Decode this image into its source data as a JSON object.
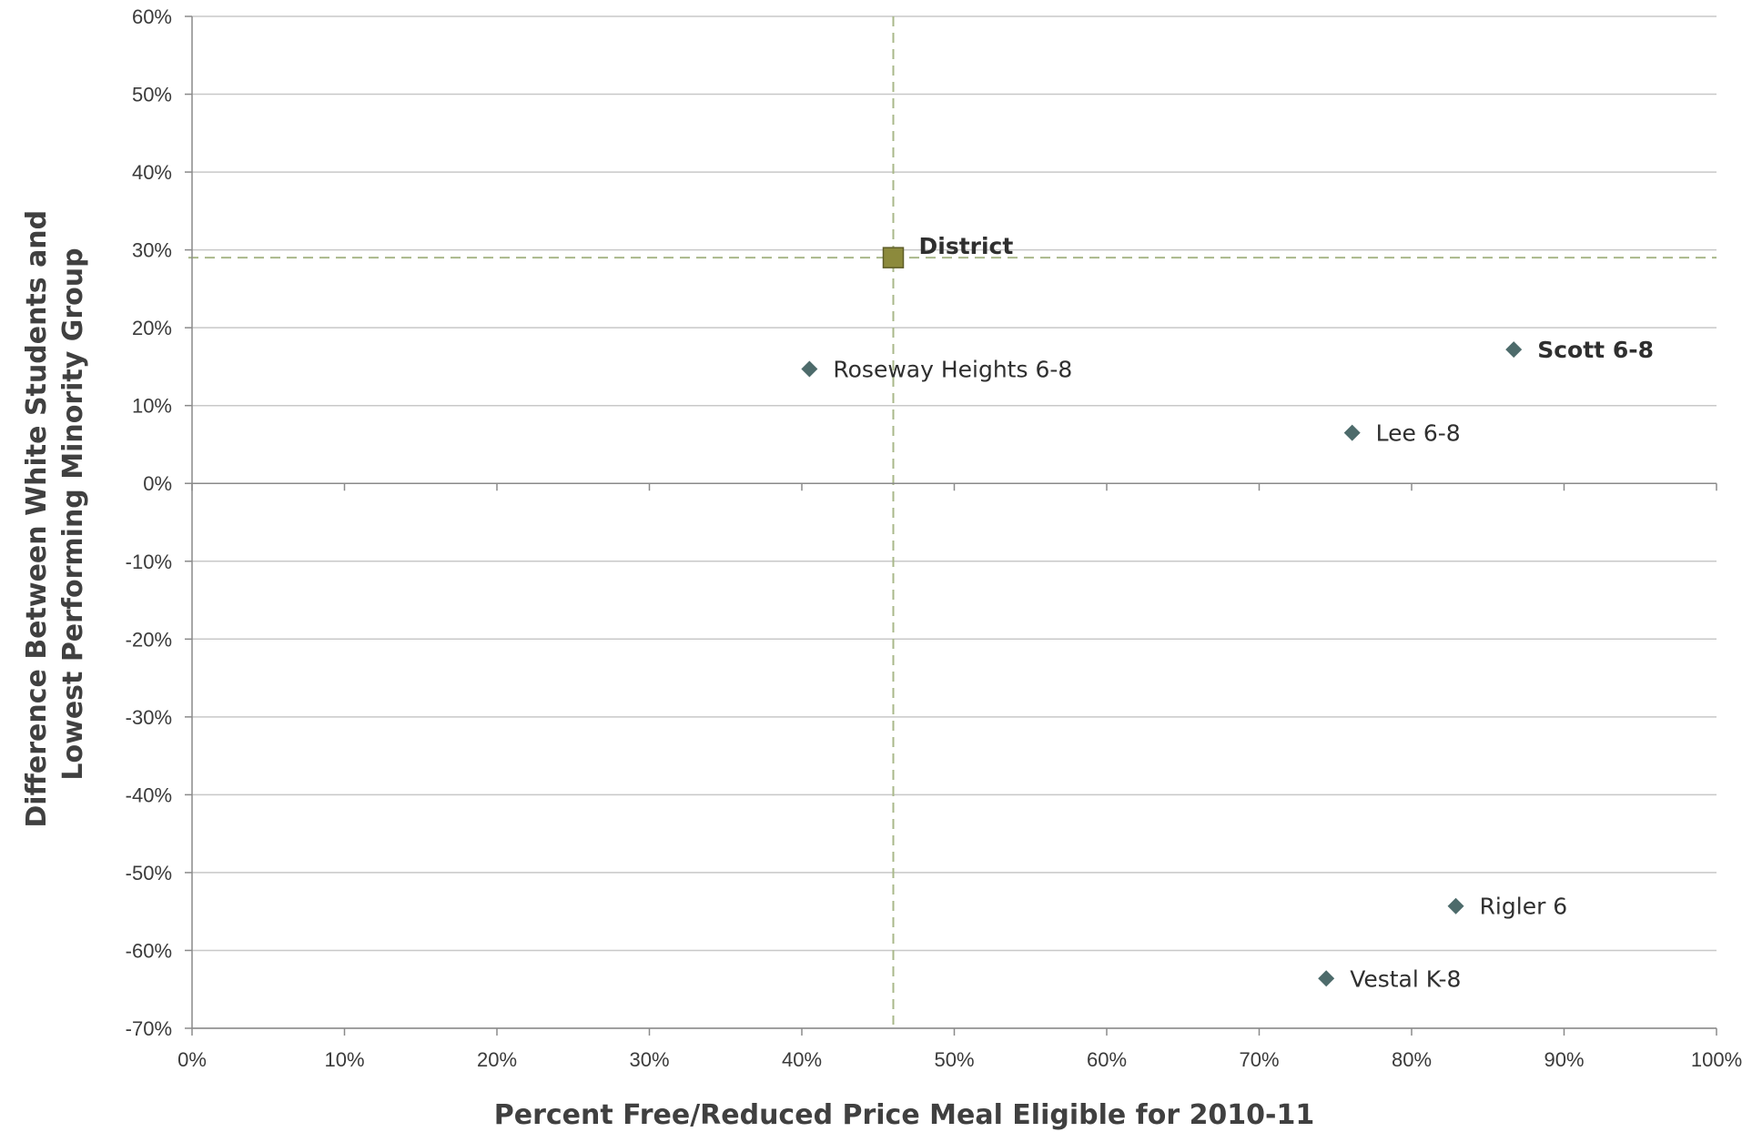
{
  "chart_data": {
    "type": "scatter",
    "xlabel": "Percent Free/Reduced Price Meal Eligible for 2010-11",
    "ylabel_lines": [
      "Difference Between White Students and",
      "Lowest Performing Minority Group"
    ],
    "xlim": [
      0,
      100
    ],
    "ylim": [
      -70,
      60
    ],
    "x_ticks": [
      0,
      10,
      20,
      30,
      40,
      50,
      60,
      70,
      80,
      90,
      100
    ],
    "y_ticks": [
      60,
      50,
      40,
      30,
      20,
      10,
      0,
      -10,
      -20,
      -30,
      -40,
      -50,
      -60,
      -70
    ],
    "x_tick_labels": [
      "0%",
      "10%",
      "20%",
      "30%",
      "40%",
      "50%",
      "60%",
      "70%",
      "80%",
      "90%",
      "100%"
    ],
    "y_tick_labels": [
      "60%",
      "50%",
      "40%",
      "30%",
      "20%",
      "10%",
      "0%",
      "-10%",
      "-20%",
      "-30%",
      "-40%",
      "-50%",
      "-60%",
      "-70%"
    ],
    "grid": "horizontal",
    "reference_lines": {
      "x": 46,
      "y": 29
    },
    "reference_color": "#a9b88a",
    "marker_color": "#4d6b6b",
    "district_color": "#8c8a3c",
    "points": [
      {
        "label": "District",
        "x": 46,
        "y": 29,
        "marker": "square",
        "bold": true
      },
      {
        "label": "Roseway Heights 6-8",
        "x": 40.5,
        "y": 14.7,
        "marker": "diamond",
        "bold": false
      },
      {
        "label": "Scott 6-8",
        "x": 86.7,
        "y": 17.2,
        "marker": "diamond",
        "bold": true
      },
      {
        "label": "Lee 6-8",
        "x": 76.1,
        "y": 6.5,
        "marker": "diamond",
        "bold": false
      },
      {
        "label": "Rigler 6",
        "x": 82.9,
        "y": -54.3,
        "marker": "diamond",
        "bold": false
      },
      {
        "label": "Vestal K-8",
        "x": 74.4,
        "y": -63.6,
        "marker": "diamond",
        "bold": false
      }
    ]
  }
}
